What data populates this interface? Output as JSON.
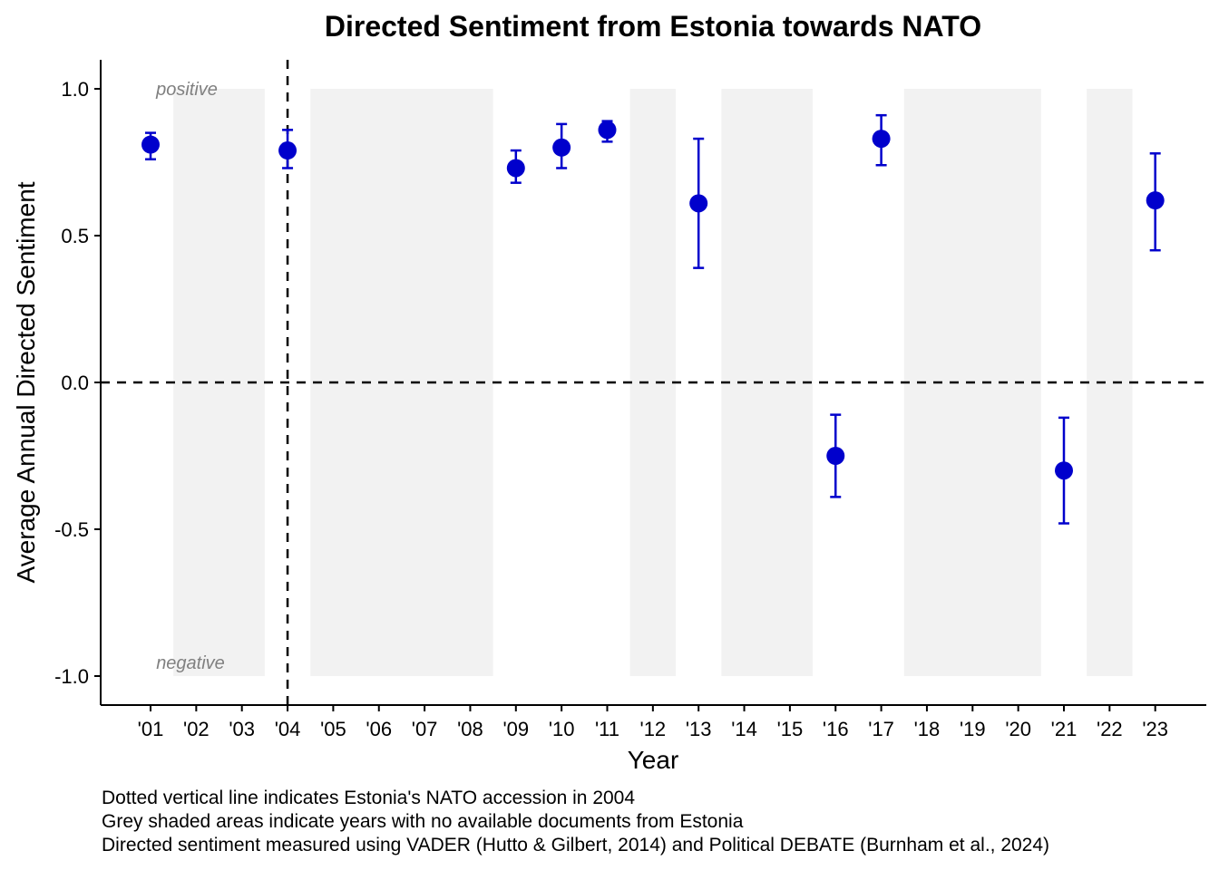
{
  "chart_data": {
    "type": "scatter",
    "title": "Directed Sentiment from Estonia towards NATO",
    "xlabel": "Year",
    "ylabel": "Average Annual Directed Sentiment",
    "x_tick_labels": [
      "'01",
      "'02",
      "'03",
      "'04",
      "'05",
      "'06",
      "'07",
      "'08",
      "'09",
      "'10",
      "'11",
      "'12",
      "'13",
      "'14",
      "'15",
      "'16",
      "'17",
      "'18",
      "'19",
      "'20",
      "'21",
      "'22",
      "'23"
    ],
    "y_ticks": [
      1.0,
      0.5,
      0.0,
      -0.5,
      -1.0
    ],
    "y_tick_labels": [
      "1.0",
      "0.5",
      "0.0",
      "-0.5",
      "-1.0"
    ],
    "ylim": [
      -1.0,
      1.0
    ],
    "annotations": {
      "top": "positive",
      "bottom": "negative"
    },
    "accession_year_index": 3,
    "zero_line": 0,
    "no_data_years": [
      "'02",
      "'03",
      "'05",
      "'06",
      "'07",
      "'08",
      "'12",
      "'14",
      "'15",
      "'18",
      "'19",
      "'20",
      "'22"
    ],
    "points": [
      {
        "x": "'01",
        "y": 0.81,
        "low": 0.76,
        "high": 0.85
      },
      {
        "x": "'04",
        "y": 0.79,
        "low": 0.73,
        "high": 0.86
      },
      {
        "x": "'09",
        "y": 0.73,
        "low": 0.68,
        "high": 0.79
      },
      {
        "x": "'10",
        "y": 0.8,
        "low": 0.73,
        "high": 0.88
      },
      {
        "x": "'11",
        "y": 0.86,
        "low": 0.82,
        "high": 0.89
      },
      {
        "x": "'13",
        "y": 0.61,
        "low": 0.39,
        "high": 0.83
      },
      {
        "x": "'16",
        "y": -0.25,
        "low": -0.39,
        "high": -0.11
      },
      {
        "x": "'17",
        "y": 0.83,
        "low": 0.74,
        "high": 0.91
      },
      {
        "x": "'21",
        "y": -0.3,
        "low": -0.48,
        "high": -0.12
      },
      {
        "x": "'23",
        "y": 0.62,
        "low": 0.45,
        "high": 0.78
      }
    ],
    "point_color": "#0000cc",
    "shade_color": "#f2f2f2",
    "grid": false
  },
  "captions": [
    "Dotted vertical line indicates Estonia's NATO accession in 2004",
    "Grey shaded areas indicate years with no available documents from Estonia",
    "Directed sentiment measured using VADER (Hutto & Gilbert, 2014) and Political DEBATE (Burnham et al., 2024)"
  ]
}
